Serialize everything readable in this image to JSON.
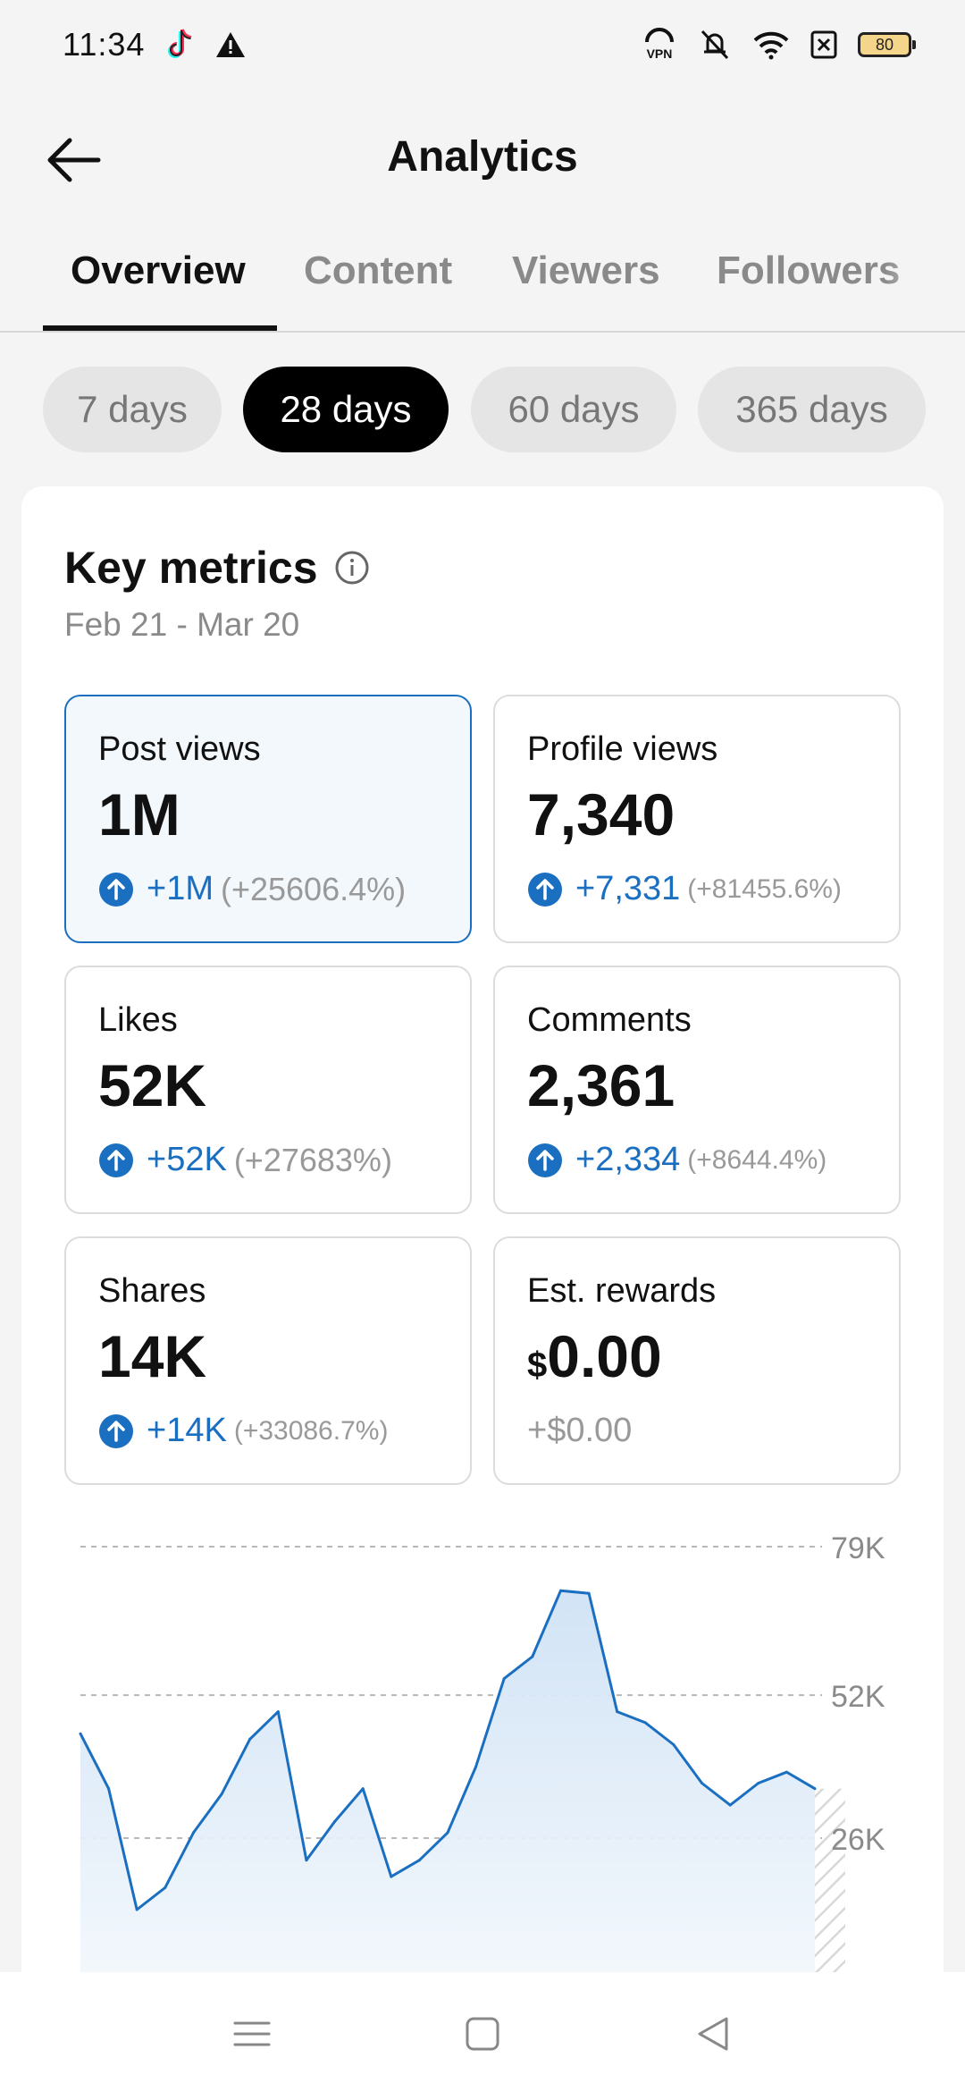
{
  "status_bar": {
    "time": "11:34",
    "battery": "80",
    "icons": [
      "tiktok-icon",
      "warning-icon",
      "vpn-icon",
      "mute-icon",
      "wifi-icon",
      "sim-off-icon",
      "battery-icon"
    ]
  },
  "header": {
    "title": "Analytics"
  },
  "tabs": [
    {
      "label": "Overview",
      "active": true
    },
    {
      "label": "Content"
    },
    {
      "label": "Viewers"
    },
    {
      "label": "Followers"
    }
  ],
  "ranges": [
    {
      "label": "7 days"
    },
    {
      "label": "28 days",
      "active": true
    },
    {
      "label": "60 days"
    },
    {
      "label": "365 days"
    }
  ],
  "key_metrics": {
    "title": "Key metrics",
    "date_range": "Feb 21 - Mar 20",
    "metrics": [
      {
        "label": "Post views",
        "value": "1M",
        "delta": "+1M",
        "pct": "(+25606.4%)",
        "selected": true
      },
      {
        "label": "Profile views",
        "value": "7,340",
        "delta": "+7,331",
        "pct": "(+81455.6%)"
      },
      {
        "label": "Likes",
        "value": "52K",
        "delta": "+52K",
        "pct": "(+27683%)"
      },
      {
        "label": "Comments",
        "value": "2,361",
        "delta": "+2,334",
        "pct": "(+8644.4%)"
      },
      {
        "label": "Shares",
        "value": "14K",
        "delta": "+14K",
        "pct": "(+33086.7%)"
      },
      {
        "label": "Est. rewards",
        "currency": "$",
        "value": "0.00",
        "delta": "+$0.00"
      }
    ]
  },
  "chart_data": {
    "type": "area",
    "y_ticks": [
      "79K",
      "52K",
      "26K"
    ],
    "ylim": [
      0,
      79000
    ],
    "grid": true,
    "series": [
      {
        "values": [
          45000,
          35000,
          13000,
          17000,
          27000,
          34000,
          44000,
          49000,
          22000,
          29000,
          35000,
          19000,
          22000,
          27000,
          39000,
          55000,
          59000,
          71000,
          70500,
          49000,
          47000,
          43000,
          36000,
          32000,
          36000,
          38000,
          35000
        ]
      }
    ],
    "colors": {
      "line": "#1b6fc1",
      "fill": "#d3e5f6"
    }
  },
  "nav_bar": {
    "icons": [
      "menu-icon",
      "home-icon",
      "back-icon"
    ]
  }
}
